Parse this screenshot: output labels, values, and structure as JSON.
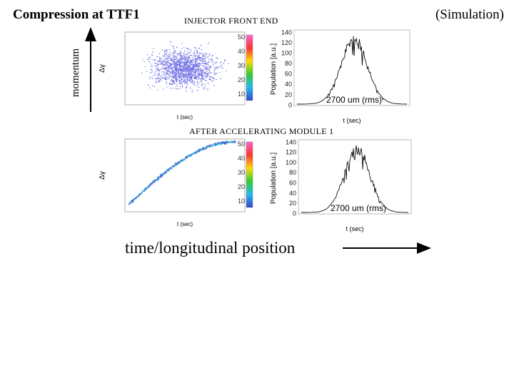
{
  "header": {
    "title": "Compression at TTF1",
    "note": "(Simulation)"
  },
  "axis_labels": {
    "momentum": "momentum",
    "time": "time/longitudinal position"
  },
  "panels": [
    {
      "heading": "INJECTOR FRONT END",
      "scatter_y_label": "Δγ",
      "scatter_x_label": "t (sec)",
      "colorbar_ticks": [
        "50",
        "40",
        "30",
        "20",
        "10"
      ],
      "hist_y_label": "Population [a.u.]",
      "hist_y_ticks": [
        "140",
        "120",
        "100",
        "80",
        "60",
        "40",
        "20",
        "0"
      ],
      "hist_note": "2700 um (rms)",
      "hist_x_label": "t (sec)"
    },
    {
      "heading": "AFTER ACCELERATING MODULE 1",
      "scatter_y_label": "Δγ",
      "scatter_x_label": "t (sec)",
      "colorbar_ticks": [
        "50",
        "40",
        "30",
        "20",
        "10"
      ],
      "hist_y_label": "Population [a.u.]",
      "hist_y_ticks": [
        "140",
        "120",
        "100",
        "80",
        "60",
        "40",
        "20",
        "0"
      ],
      "hist_note": "2700 um (rms)",
      "hist_x_label": "t (sec)"
    }
  ]
}
